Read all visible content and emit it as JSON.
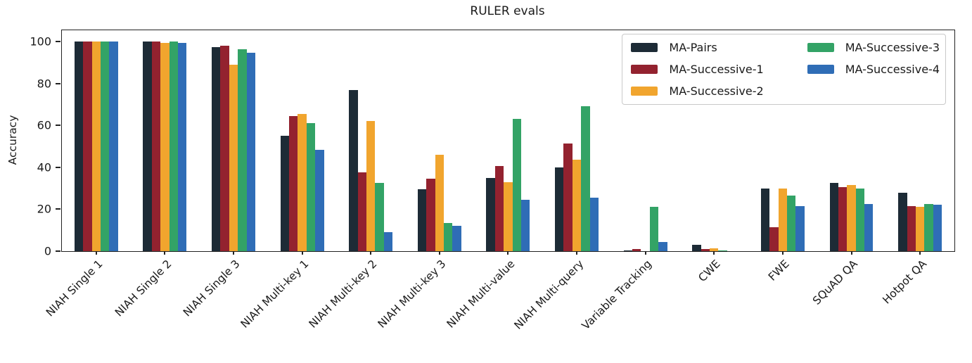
{
  "chart_data": {
    "type": "bar",
    "title": "RULER evals",
    "ylabel": "Accuracy",
    "xlabel": "",
    "ylim": [
      0,
      105.4
    ],
    "yticks": [
      0,
      20,
      40,
      60,
      80,
      100
    ],
    "grid": false,
    "legend_position": "upper right",
    "legend_columns": 2,
    "legend_rows_per_column": 3,
    "axis_color": "#222222",
    "text_color": "#1a1a1a",
    "categories": [
      "NIAH Single 1",
      "NIAH Single 2",
      "NIAH Single 3",
      "NIAH Multi-key 1",
      "NIAH Multi-key 2",
      "NIAH Multi-key 3",
      "NIAH Multi-value",
      "NIAH Multi-query",
      "Variable Tracking",
      "CWE",
      "FWE",
      "SQuAD QA",
      "Hotpot QA"
    ],
    "series": [
      {
        "name": "MA-Pairs",
        "color": "#1d2b36",
        "values": [
          100,
          100,
          97.5,
          55,
          77,
          29.5,
          35,
          40,
          0.5,
          3,
          30,
          32.5,
          28
        ]
      },
      {
        "name": "MA-Successive-1",
        "color": "#93222f",
        "values": [
          100,
          100,
          98,
          64.5,
          37.5,
          34.5,
          40.5,
          51.5,
          1,
          1,
          11.5,
          30.5,
          21.5
        ]
      },
      {
        "name": "MA-Successive-2",
        "color": "#f1a52e",
        "values": [
          100,
          99.5,
          89,
          65.5,
          62,
          46,
          33,
          43.5,
          0,
          1.5,
          30,
          31.5,
          21
        ]
      },
      {
        "name": "MA-Successive-3",
        "color": "#33a366",
        "values": [
          100,
          100,
          96.5,
          61,
          32.5,
          13.5,
          63,
          69,
          21,
          0.5,
          26.5,
          30,
          22.5
        ]
      },
      {
        "name": "MA-Successive-4",
        "color": "#2f6db6",
        "values": [
          100,
          99.5,
          94.5,
          48.5,
          9,
          12,
          24.5,
          25.5,
          4.5,
          0,
          21.5,
          22.5,
          22
        ]
      }
    ]
  }
}
